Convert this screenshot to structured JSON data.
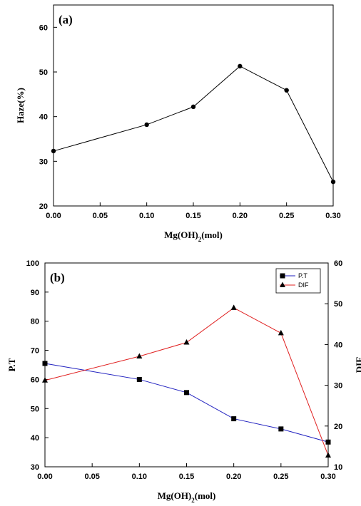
{
  "chart_data": [
    {
      "type": "line",
      "panel_label": "(a)",
      "xlabel": "Mg(OH)₂(mol)",
      "ylabel": "Haze(%)",
      "xlim": [
        0,
        0.3
      ],
      "ylim": [
        20,
        65
      ],
      "xticks": [
        "0.00",
        "0.05",
        "0.10",
        "0.15",
        "0.20",
        "0.25",
        "0.30"
      ],
      "yticks": [
        "20",
        "30",
        "40",
        "50",
        "60"
      ],
      "grid": false,
      "series": [
        {
          "name": "",
          "color": "#000000",
          "marker": "circle",
          "x": [
            0.0,
            0.1,
            0.15,
            0.2,
            0.25,
            0.3
          ],
          "y": [
            32.3,
            38.2,
            42.2,
            51.3,
            45.9,
            25.4
          ]
        }
      ]
    },
    {
      "type": "line",
      "panel_label": "(b)",
      "xlabel": "Mg(OH)₂(mol)",
      "ylabel": "P.T",
      "y2label": "DIF",
      "xlim": [
        0,
        0.3
      ],
      "ylim": [
        30,
        100
      ],
      "y2lim": [
        10,
        60
      ],
      "xticks": [
        "0.00",
        "0.05",
        "0.10",
        "0.15",
        "0.20",
        "0.25",
        "0.30"
      ],
      "yticks": [
        "30",
        "40",
        "50",
        "60",
        "70",
        "80",
        "90",
        "100"
      ],
      "y2ticks": [
        "10",
        "20",
        "30",
        "40",
        "50",
        "60"
      ],
      "grid": false,
      "legend_position": "top-right",
      "series": [
        {
          "name": "P.T",
          "axis": "left",
          "color": "#1f1fbf",
          "marker": "square",
          "x": [
            0.0,
            0.1,
            0.15,
            0.2,
            0.25,
            0.3
          ],
          "y": [
            65.5,
            60.0,
            55.5,
            46.5,
            43.0,
            38.5
          ]
        },
        {
          "name": "DIF",
          "axis": "right",
          "color": "#e02020",
          "marker": "triangle",
          "x": [
            0.0,
            0.1,
            0.15,
            0.2,
            0.25,
            0.3
          ],
          "y": [
            31.2,
            37.1,
            40.5,
            49.0,
            42.8,
            12.8
          ]
        }
      ]
    }
  ]
}
